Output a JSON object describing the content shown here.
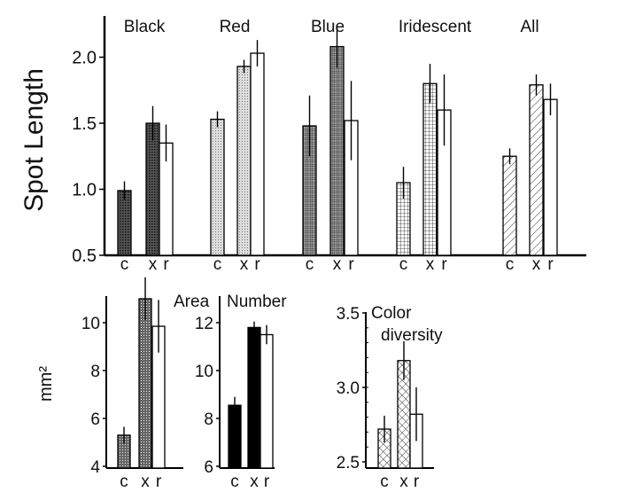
{
  "chart_data": [
    {
      "type": "bar",
      "id": "spot-length",
      "ylabel": "Spot Length",
      "ylim": [
        0.5,
        2.25
      ],
      "yticks": [
        "0.5",
        "1.0",
        "1.5",
        "2.0"
      ],
      "ytick_values": [
        0.5,
        1.0,
        1.5,
        2.0
      ],
      "categories": [
        "c",
        "x",
        "r"
      ],
      "groups": [
        {
          "title": "Black",
          "pattern": "darkcross",
          "values": [
            0.99,
            1.5,
            1.35
          ],
          "errors": [
            0.07,
            0.13,
            0.14
          ]
        },
        {
          "title": "Red",
          "pattern": "lightdots",
          "values": [
            1.53,
            1.93,
            2.03
          ],
          "errors": [
            0.06,
            0.05,
            0.1
          ]
        },
        {
          "title": "Blue",
          "pattern": "finegrid",
          "values": [
            1.48,
            2.08,
            1.52
          ],
          "errors": [
            0.23,
            0.16,
            0.3
          ]
        },
        {
          "title": "Iridescent",
          "pattern": "grid",
          "values": [
            1.05,
            1.8,
            1.6
          ],
          "errors": [
            0.12,
            0.15,
            0.27
          ]
        },
        {
          "title": "All",
          "pattern": "hatch",
          "values": [
            1.25,
            1.79,
            1.68
          ],
          "errors": [
            0.06,
            0.08,
            0.12
          ]
        }
      ]
    },
    {
      "type": "bar",
      "id": "area",
      "title": "Area",
      "ylabel": "mm²",
      "ylim": [
        4,
        11.3
      ],
      "yticks": [
        "4",
        "6",
        "8",
        "10"
      ],
      "ytick_values": [
        4,
        6,
        8,
        10
      ],
      "categories": [
        "c",
        "x",
        "r"
      ],
      "pattern": "darkdots",
      "values": [
        5.3,
        11.0,
        9.85
      ],
      "errors": [
        0.35,
        0.9,
        1.1
      ]
    },
    {
      "type": "bar",
      "id": "number",
      "title": "Number",
      "ylim": [
        6,
        12.8
      ],
      "yticks": [
        "6",
        "8",
        "10",
        "12"
      ],
      "ytick_values": [
        6,
        8,
        10,
        12
      ],
      "categories": [
        "c",
        "x",
        "r"
      ],
      "pattern": "solid",
      "values": [
        8.55,
        11.8,
        11.5
      ],
      "errors": [
        0.35,
        0.25,
        0.4
      ]
    },
    {
      "type": "bar",
      "id": "color-diversity",
      "title": "Color diversity",
      "title_lines": [
        "Color",
        "diversity"
      ],
      "ylim": [
        2.5,
        3.5
      ],
      "yticks": [
        "2.5",
        "3.0",
        "3.5"
      ],
      "ytick_values": [
        2.5,
        3.0,
        3.5
      ],
      "categories": [
        "c",
        "x",
        "r"
      ],
      "pattern": "diamond",
      "values": [
        2.72,
        3.18,
        2.82
      ],
      "errors": [
        0.09,
        0.13,
        0.18
      ]
    }
  ]
}
